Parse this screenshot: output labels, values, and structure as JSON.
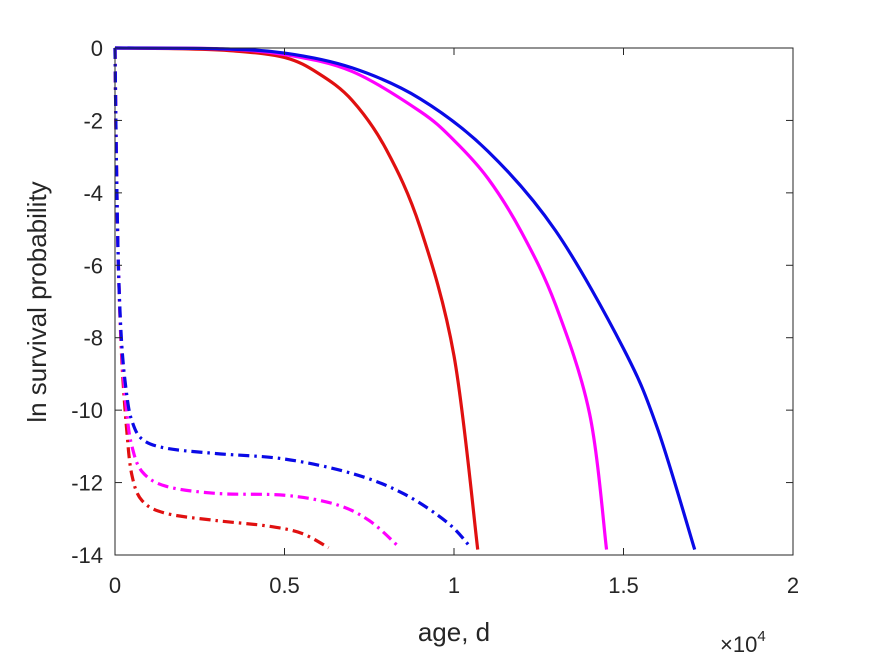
{
  "chart_data": {
    "type": "line",
    "title": "",
    "xlabel": "age, d",
    "ylabel": "ln survival probability",
    "x_exponent_label": {
      "base": "×10",
      "power": "4"
    },
    "xlim": [
      0,
      20000
    ],
    "ylim": [
      -14,
      0
    ],
    "x_ticks": [
      0,
      5000,
      10000,
      15000,
      20000
    ],
    "x_tick_labels": [
      "0",
      "0.5",
      "1",
      "1.5",
      "2"
    ],
    "y_ticks": [
      0,
      -2,
      -4,
      -6,
      -8,
      -10,
      -12,
      -14
    ],
    "y_tick_labels": [
      "0",
      "-2",
      "-4",
      "-6",
      "-8",
      "-10",
      "-12",
      "-14"
    ],
    "grid": false,
    "legend": "none",
    "series": [
      {
        "color": "#e01010",
        "style": "solid",
        "points": [
          [
            0,
            0
          ],
          [
            2000,
            -0.02
          ],
          [
            3500,
            -0.08
          ],
          [
            5000,
            -0.26
          ],
          [
            6000,
            -0.7
          ],
          [
            7000,
            -1.45
          ],
          [
            8000,
            -2.8
          ],
          [
            9000,
            -4.95
          ],
          [
            10000,
            -8.5
          ],
          [
            10700,
            -13.85
          ]
        ]
      },
      {
        "color": "#ff00ff",
        "style": "solid",
        "points": [
          [
            0,
            0
          ],
          [
            3000,
            -0.02
          ],
          [
            5000,
            -0.18
          ],
          [
            7000,
            -0.65
          ],
          [
            9000,
            -1.75
          ],
          [
            10000,
            -2.55
          ],
          [
            11000,
            -3.6
          ],
          [
            12000,
            -5.1
          ],
          [
            13000,
            -7.1
          ],
          [
            14000,
            -10.1
          ],
          [
            14500,
            -13.85
          ]
        ]
      },
      {
        "color": "#0a0ae6",
        "style": "solid",
        "points": [
          [
            0,
            0
          ],
          [
            3000,
            -0.02
          ],
          [
            5000,
            -0.14
          ],
          [
            7000,
            -0.55
          ],
          [
            9000,
            -1.4
          ],
          [
            11000,
            -2.85
          ],
          [
            13000,
            -5.05
          ],
          [
            15000,
            -8.3
          ],
          [
            16000,
            -10.5
          ],
          [
            17100,
            -13.85
          ]
        ]
      },
      {
        "color": "#e01010",
        "style": "dashdot",
        "points": [
          [
            0,
            0
          ],
          [
            40,
            -3
          ],
          [
            100,
            -6
          ],
          [
            200,
            -8.6
          ],
          [
            350,
            -10.6
          ],
          [
            500,
            -11.8
          ],
          [
            800,
            -12.5
          ],
          [
            1500,
            -12.85
          ],
          [
            3000,
            -13.05
          ],
          [
            4500,
            -13.2
          ],
          [
            5500,
            -13.4
          ],
          [
            6300,
            -13.8
          ]
        ]
      },
      {
        "color": "#ff00ff",
        "style": "dashdot",
        "points": [
          [
            0,
            0
          ],
          [
            40,
            -3
          ],
          [
            100,
            -6
          ],
          [
            200,
            -8.4
          ],
          [
            350,
            -10.1
          ],
          [
            500,
            -11
          ],
          [
            800,
            -11.7
          ],
          [
            1500,
            -12.1
          ],
          [
            3000,
            -12.3
          ],
          [
            5000,
            -12.35
          ],
          [
            6500,
            -12.6
          ],
          [
            7500,
            -13.05
          ],
          [
            8400,
            -13.8
          ]
        ]
      },
      {
        "color": "#0a0ae6",
        "style": "dashdot",
        "points": [
          [
            0,
            0
          ],
          [
            40,
            -3
          ],
          [
            100,
            -6
          ],
          [
            200,
            -8.2
          ],
          [
            350,
            -9.6
          ],
          [
            500,
            -10.3
          ],
          [
            800,
            -10.8
          ],
          [
            1500,
            -11.05
          ],
          [
            3000,
            -11.2
          ],
          [
            5000,
            -11.35
          ],
          [
            7000,
            -11.75
          ],
          [
            8500,
            -12.3
          ],
          [
            9800,
            -13.1
          ],
          [
            10500,
            -13.8
          ]
        ]
      }
    ]
  }
}
